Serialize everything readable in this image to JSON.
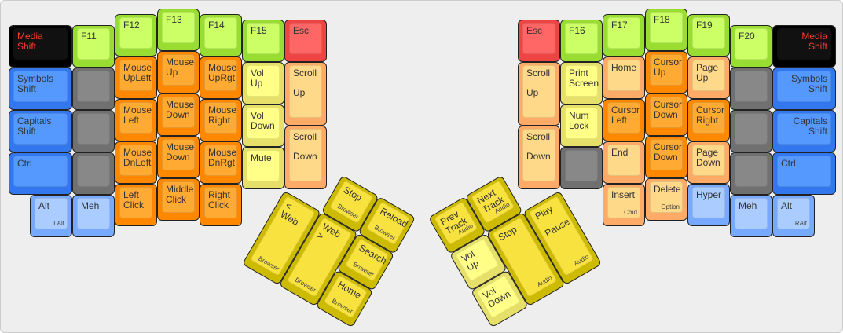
{
  "colors": {
    "black": [
      "#000000",
      "#111111",
      "#ff3b2f"
    ],
    "green": [
      "#99dd33",
      "#ccff66",
      "#333333"
    ],
    "red": [
      "#ee4444",
      "#ff6666",
      "#333333"
    ],
    "blue": [
      "#3377ee",
      "#5599ff",
      "#333333"
    ],
    "gray": [
      "#707070",
      "#888888",
      "#333333"
    ],
    "orange": [
      "#ff8800",
      "#ffaa33",
      "#333333"
    ],
    "lightyellow": [
      "#e6e06a",
      "#ffff88",
      "#333333"
    ],
    "peach": [
      "#ffaa66",
      "#ffd98a",
      "#333333"
    ],
    "lightblue": [
      "#77aaff",
      "#aaccff",
      "#333333"
    ],
    "yellow": [
      "#ccbb00",
      "#f8e240",
      "#333333"
    ]
  },
  "left": {
    "keys": [
      {
        "label": "Media\nShift",
        "color": "black"
      },
      {
        "label": "Symbols\nShift",
        "color": "blue"
      },
      {
        "label": "Capitals\nShift",
        "color": "blue"
      },
      {
        "label": "Ctrl",
        "color": "blue"
      },
      {
        "label": "Alt",
        "sub": "LAlt",
        "color": "lightblue"
      },
      {
        "label": "F11",
        "color": "green"
      },
      {
        "label": "",
        "color": "gray"
      },
      {
        "label": "",
        "color": "gray"
      },
      {
        "label": "",
        "color": "gray"
      },
      {
        "label": "Meh",
        "color": "lightblue"
      },
      {
        "label": "F12",
        "color": "green"
      },
      {
        "label": "Mouse\nUpLeft",
        "color": "orange"
      },
      {
        "label": "Mouse\nLeft",
        "color": "orange"
      },
      {
        "label": "Mouse\nDnLeft",
        "color": "orange"
      },
      {
        "label": "Left\nClick",
        "color": "orange"
      },
      {
        "label": "F13",
        "color": "green"
      },
      {
        "label": "Mouse\nUp",
        "color": "orange"
      },
      {
        "label": "Mouse\nDown",
        "color": "orange"
      },
      {
        "label": "Mouse\nDown",
        "color": "orange"
      },
      {
        "label": "Middle\nClick",
        "color": "orange"
      },
      {
        "label": "F14",
        "color": "green"
      },
      {
        "label": "Mouse\nUpRgt",
        "color": "orange"
      },
      {
        "label": "Mouse\nRight",
        "color": "orange"
      },
      {
        "label": "Mouse\nDnRgt",
        "color": "orange"
      },
      {
        "label": "Right\nClick",
        "color": "orange"
      },
      {
        "label": "F15",
        "color": "green"
      },
      {
        "label": "Vol\nUp",
        "color": "lightyellow"
      },
      {
        "label": "Vol\nDown",
        "color": "lightyellow"
      },
      {
        "label": "Mute",
        "color": "lightyellow"
      },
      {
        "label": "Esc",
        "color": "red"
      },
      {
        "label": "Scroll\n\nUp",
        "color": "peach"
      },
      {
        "label": "Scroll\n\nDown",
        "color": "peach"
      }
    ],
    "thumb": [
      {
        "label": "Stop",
        "sub": "Browser",
        "color": "yellow"
      },
      {
        "label": "Reload",
        "sub": "Browser",
        "color": "yellow"
      },
      {
        "label": "< Web",
        "sub": "Browser",
        "color": "yellow"
      },
      {
        "label": "Web >",
        "sub": "Browser",
        "color": "yellow"
      },
      {
        "label": "Search",
        "sub": "Browser",
        "color": "yellow"
      },
      {
        "label": "Home",
        "sub": "Browser",
        "color": "yellow"
      }
    ]
  },
  "right": {
    "keys": [
      {
        "label": "Esc",
        "color": "red"
      },
      {
        "label": "Scroll\n\nUp",
        "color": "peach"
      },
      {
        "label": "Scroll\n\nDown",
        "color": "peach"
      },
      {
        "label": "F16",
        "color": "green"
      },
      {
        "label": "Print\nScreen",
        "color": "lightyellow"
      },
      {
        "label": "Num\nLock",
        "color": "lightyellow"
      },
      {
        "label": "",
        "color": "gray"
      },
      {
        "label": "F17",
        "color": "green"
      },
      {
        "label": "Home",
        "color": "peach"
      },
      {
        "label": "Cursor\nLeft",
        "color": "orange"
      },
      {
        "label": "End",
        "color": "peach"
      },
      {
        "label": "Insert",
        "sub": "Cmd",
        "color": "peach"
      },
      {
        "label": "F18",
        "color": "green"
      },
      {
        "label": "Cursor\nUp",
        "color": "orange"
      },
      {
        "label": "Cursor\nDown",
        "color": "orange"
      },
      {
        "label": "Cursor\nDown",
        "color": "orange"
      },
      {
        "label": "Delete",
        "sub": "Option",
        "color": "peach"
      },
      {
        "label": "F19",
        "color": "green"
      },
      {
        "label": "Page\nUp",
        "color": "peach"
      },
      {
        "label": "Cursor\nRight",
        "color": "orange"
      },
      {
        "label": "Page\nDown",
        "color": "peach"
      },
      {
        "label": "Hyper",
        "color": "lightblue"
      },
      {
        "label": "F20",
        "color": "green"
      },
      {
        "label": "",
        "color": "gray"
      },
      {
        "label": "",
        "color": "gray"
      },
      {
        "label": "",
        "color": "gray"
      },
      {
        "label": "Meh",
        "color": "lightblue"
      },
      {
        "label": "Media\nShift",
        "color": "black"
      },
      {
        "label": "Symbols\nShift",
        "color": "blue"
      },
      {
        "label": "Capitals\nShift",
        "color": "blue"
      },
      {
        "label": "Ctrl",
        "color": "blue"
      },
      {
        "label": "Alt",
        "sub": "RAlt",
        "color": "lightblue"
      }
    ],
    "thumb": [
      {
        "label": "Prev\nTrack",
        "sub": "Audio",
        "color": "yellow"
      },
      {
        "label": "Next\nTrack",
        "sub": "Audio",
        "color": "yellow"
      },
      {
        "label": "Vol\nUp",
        "color": "lightyellow"
      },
      {
        "label": "Stop",
        "sub": "Audio",
        "color": "yellow"
      },
      {
        "label": "Play\n\nPause",
        "sub": "Audio",
        "color": "yellow"
      },
      {
        "label": "Vol\nDown",
        "color": "lightyellow"
      }
    ]
  }
}
